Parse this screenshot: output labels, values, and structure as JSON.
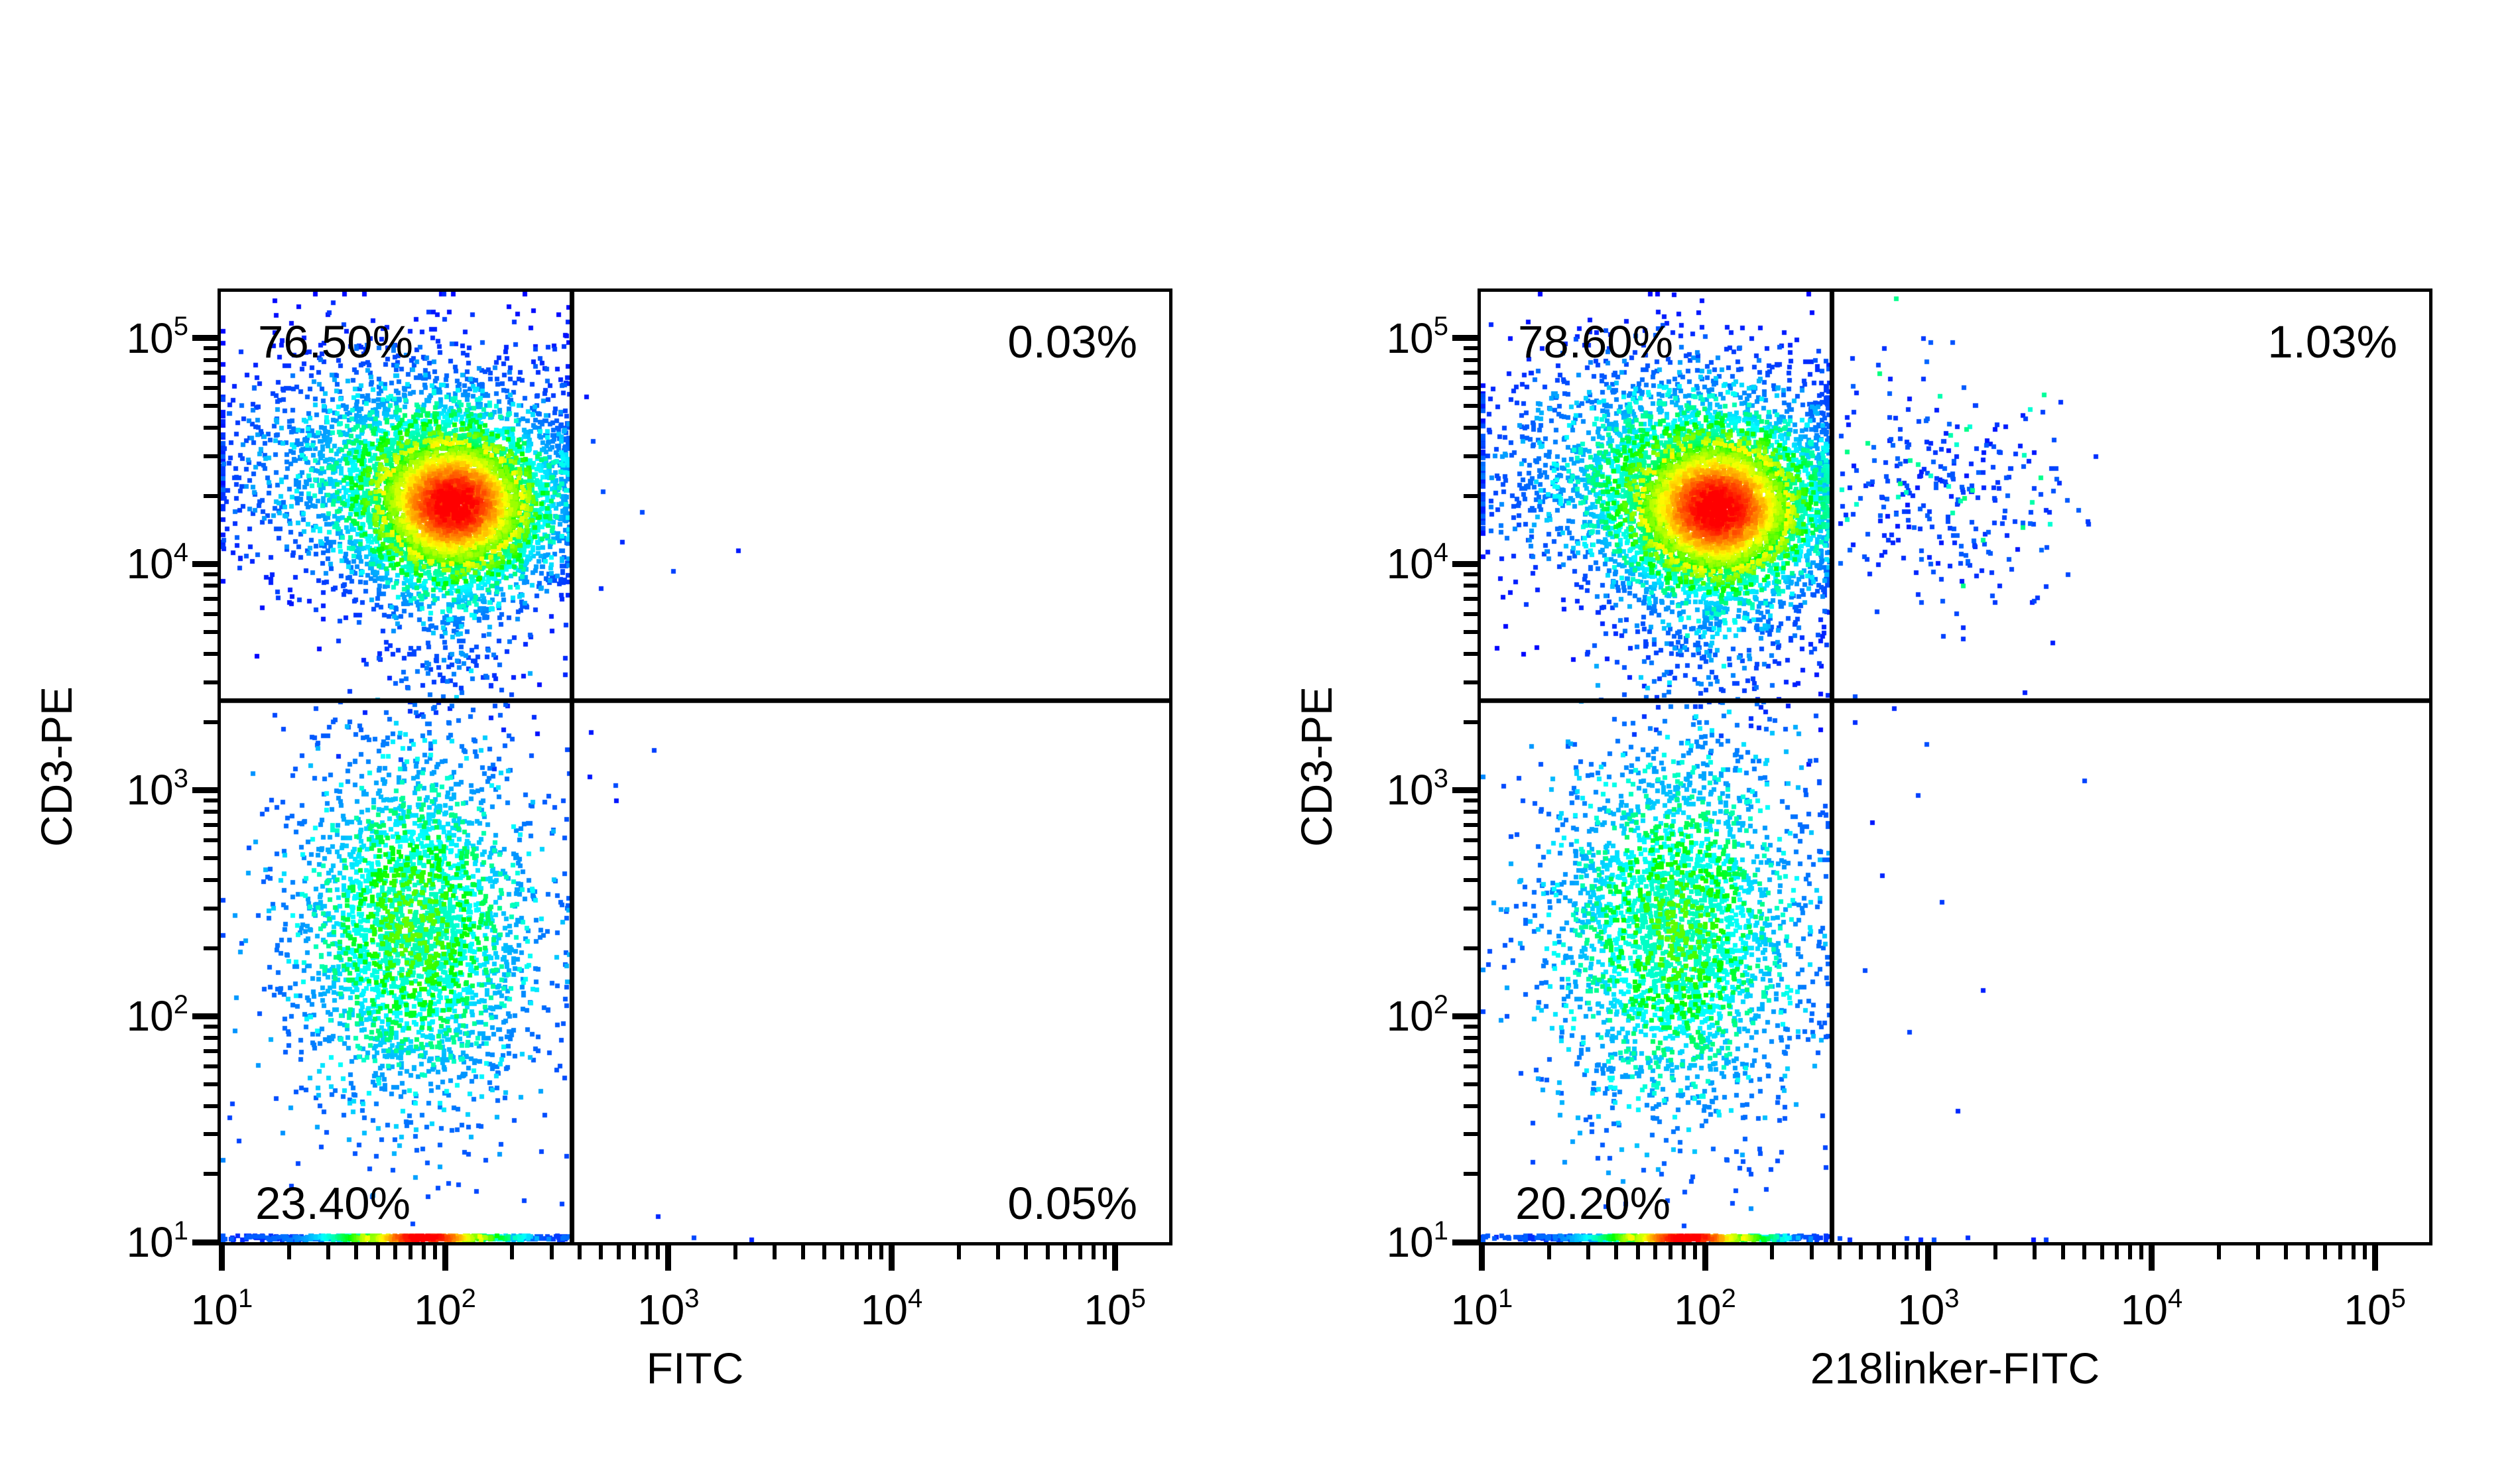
{
  "figure": {
    "background": "#ffffff",
    "ink_color": "#000000",
    "pseudocolor_palette": [
      "#0000ff",
      "#00ffff",
      "#00ff00",
      "#ffff00",
      "#ff8000",
      "#ff0000"
    ]
  },
  "chart_data": [
    {
      "id": "fitc-vs-cd3pe",
      "type": "scatter",
      "subtype": "flow-cytometry-pseudocolor-density-dot-plot",
      "xlabel": "FITC",
      "ylabel": "CD3-PE",
      "x_scale": "log",
      "y_scale": "log",
      "xlim": [
        9.9,
        175000
      ],
      "ylim": [
        10,
        160000
      ],
      "x_tick_exponents": [
        1,
        2,
        3,
        4,
        5
      ],
      "y_tick_exponents": [
        1,
        2,
        3,
        4,
        5
      ],
      "grid": false,
      "legend": "none",
      "quadrant_gates": {
        "x": 370,
        "y": 2500
      },
      "quadrant_labels": {
        "upper_left": "76.50%",
        "upper_right": "0.03%",
        "lower_left": "23.40%",
        "lower_right": "0.05%"
      },
      "seed": 1337,
      "populations": [
        {
          "name": "cd3-positive-core",
          "x": 112,
          "y": 18200,
          "sx": 0.22,
          "sy": 0.185,
          "n": 4000,
          "clamp_x_max": 360
        },
        {
          "name": "cd3-positive-halo",
          "x": 66,
          "y": 26900,
          "sx": 0.42,
          "sy": 0.27,
          "n": 2200,
          "clamp_x_max": 360
        },
        {
          "name": "cd3-positive-lower-tail",
          "x": 105,
          "y": 8500,
          "sx": 0.22,
          "sy": 0.3,
          "n": 500,
          "clamp_x_max": 360
        },
        {
          "name": "cd3-negative",
          "x": 72,
          "y": 250,
          "sx": 0.28,
          "sy": 0.4,
          "n": 3000,
          "clamp_x_max": 360,
          "color_bias": 0.08
        }
      ],
      "baseline_band": {
        "x_center": 63,
        "x_sigma": 0.33,
        "n": 1100,
        "color_center": 80,
        "color_sigma": 0.22,
        "clamp_x_max": 360
      },
      "sparse_points": [
        [
          460,
          35000
        ],
        [
          510,
          21000
        ],
        [
          620,
          12500
        ],
        [
          760,
          17000
        ],
        [
          500,
          7800
        ],
        [
          1050,
          9300
        ],
        [
          2050,
          11500
        ],
        [
          430,
          55000
        ],
        [
          450,
          1800
        ],
        [
          445,
          1150
        ],
        [
          860,
          1500
        ],
        [
          580,
          1050
        ],
        [
          585,
          900
        ],
        [
          1300,
          10.5
        ],
        [
          2350,
          10.3
        ],
        [
          900,
          13
        ],
        [
          105,
          2300
        ],
        [
          160,
          2900
        ],
        [
          250,
          2100
        ],
        [
          85,
          1800
        ]
      ]
    },
    {
      "id": "218linker-fitc-vs-cd3pe",
      "type": "scatter",
      "subtype": "flow-cytometry-pseudocolor-density-dot-plot",
      "xlabel": "218linker-FITC",
      "ylabel": "CD3-PE",
      "x_scale": "log",
      "y_scale": "log",
      "xlim": [
        9.9,
        175000
      ],
      "ylim": [
        10,
        160000
      ],
      "x_tick_exponents": [
        1,
        2,
        3,
        4,
        5
      ],
      "y_tick_exponents": [
        1,
        2,
        3,
        4,
        5
      ],
      "grid": false,
      "legend": "none",
      "quadrant_gates": {
        "x": 370,
        "y": 2500
      },
      "quadrant_labels": {
        "upper_left": "78.60%",
        "upper_right": "1.03%",
        "lower_left": "20.20%"
      },
      "seed": 424242,
      "populations": [
        {
          "name": "cd3-positive-core",
          "x": 115,
          "y": 17400,
          "sx": 0.23,
          "sy": 0.19,
          "n": 4000,
          "clamp_x_max": 360
        },
        {
          "name": "cd3-positive-halo",
          "x": 71,
          "y": 26300,
          "sx": 0.45,
          "sy": 0.28,
          "n": 2300,
          "clamp_x_max": 360
        },
        {
          "name": "cd3-positive-lower-tail",
          "x": 112,
          "y": 8300,
          "sx": 0.25,
          "sy": 0.33,
          "n": 600,
          "clamp_x_max": 360
        },
        {
          "name": "cd3-negative",
          "x": 74,
          "y": 240,
          "sx": 0.29,
          "sy": 0.42,
          "n": 3000,
          "clamp_x_max": 360,
          "color_bias": 0.08
        },
        {
          "name": "cd3-positive-218linker-positive",
          "x": 1200,
          "y": 21400,
          "sx": 0.26,
          "sy": 0.24,
          "n": 300,
          "clamp_x_min": 400,
          "color_mode": "dim",
          "exclude_from_density": true
        }
      ],
      "baseline_band": {
        "x_center": 66,
        "x_sigma": 0.31,
        "n": 1100,
        "color_center": 83,
        "color_sigma": 0.22,
        "clamp_x_max": 360
      },
      "sparse_points": [
        [
          470,
          2000
        ],
        [
          700,
          2300
        ],
        [
          900,
          950
        ],
        [
          620,
          420
        ],
        [
          520,
          160
        ],
        [
          820,
          85
        ],
        [
          1150,
          320
        ],
        [
          1750,
          130
        ],
        [
          980,
          1600
        ],
        [
          560,
          720
        ],
        [
          2700,
          2700
        ],
        [
          1350,
          38
        ],
        [
          5000,
          1100
        ],
        [
          470,
          2600
        ],
        [
          800,
          10.4
        ],
        [
          920,
          10.2
        ],
        [
          1060,
          10.3
        ],
        [
          1500,
          10.5
        ],
        [
          2950,
          10.3
        ],
        [
          3350,
          10.2
        ],
        [
          400,
          10.4
        ],
        [
          445,
          10.3
        ],
        [
          5600,
          30000
        ],
        [
          4200,
          9000
        ],
        [
          3900,
          52000
        ],
        [
          5200,
          15000
        ],
        [
          3600,
          4500
        ]
      ]
    }
  ]
}
